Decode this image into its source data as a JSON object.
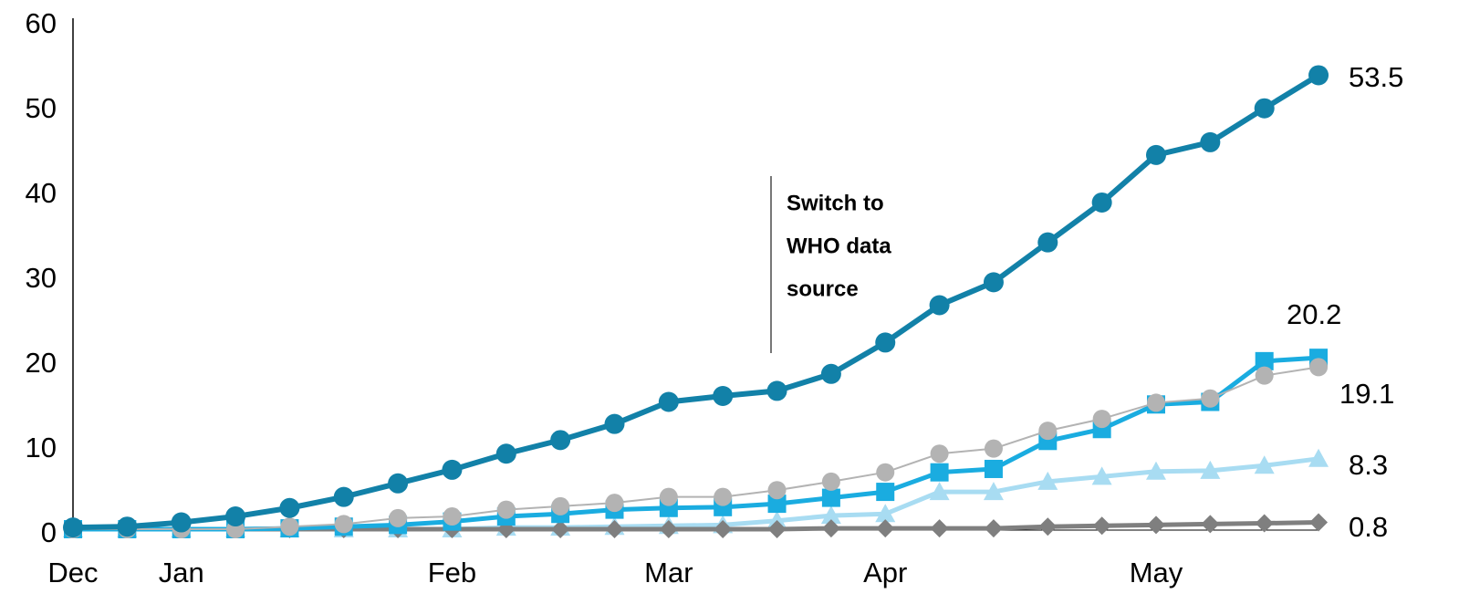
{
  "chart_data": {
    "type": "line",
    "categories": [
      "Dec",
      null,
      "Jan",
      null,
      null,
      null,
      null,
      "Feb",
      null,
      null,
      null,
      "Mar",
      null,
      null,
      null,
      "Apr",
      null,
      null,
      null,
      null,
      "May",
      null,
      null,
      null
    ],
    "ylim": [
      0,
      60
    ],
    "yticks": [
      0,
      10,
      20,
      30,
      40,
      50,
      60
    ],
    "grid": false,
    "annotation": [
      "Switch to",
      "WHO data",
      "source"
    ],
    "series": [
      {
        "color": "#a8dcf2",
        "marker": "triangle",
        "width": 5,
        "values": [
          0,
          0,
          0,
          0,
          0,
          0,
          0,
          0,
          0.2,
          0.2,
          0.3,
          0.4,
          0.5,
          1.0,
          1.6,
          1.8,
          4.4,
          4.4,
          5.6,
          6.2,
          6.8,
          6.9,
          7.5,
          8.3
        ]
      },
      {
        "color": "#7f7f7f",
        "marker": "diamond",
        "width": 5,
        "values": [
          0,
          0,
          0,
          0,
          0,
          0,
          0,
          0,
          0,
          0,
          0,
          0,
          0,
          0,
          0.1,
          0.1,
          0.1,
          0.1,
          0.3,
          0.4,
          0.5,
          0.6,
          0.7,
          0.8
        ]
      },
      {
        "color": "#1aace0",
        "marker": "square",
        "width": 5,
        "values": [
          0,
          0,
          0,
          0,
          0.1,
          0.3,
          0.5,
          0.9,
          1.5,
          1.8,
          2.3,
          2.5,
          2.6,
          3.0,
          3.7,
          4.4,
          6.7,
          7.1,
          10.4,
          11.8,
          14.7,
          15.0,
          19.8,
          20.2
        ]
      },
      {
        "color": "#b3b3b3",
        "marker": "circle",
        "width": 2,
        "values": [
          0,
          0,
          0,
          0,
          0.3,
          0.6,
          1.3,
          1.5,
          2.3,
          2.7,
          3.1,
          3.8,
          3.8,
          4.6,
          5.6,
          6.7,
          8.9,
          9.5,
          11.6,
          13.0,
          14.9,
          15.4,
          18.1,
          19.1
        ]
      },
      {
        "color": "#1281a8",
        "marker": "circle",
        "width": 6,
        "values": [
          0.2,
          0.3,
          0.8,
          1.5,
          2.5,
          3.8,
          5.4,
          7.0,
          8.9,
          10.5,
          12.4,
          15.0,
          15.7,
          16.3,
          18.3,
          22.0,
          26.4,
          29.1,
          33.8,
          38.5,
          44.1,
          45.6,
          49.6,
          53.5
        ]
      }
    ]
  }
}
